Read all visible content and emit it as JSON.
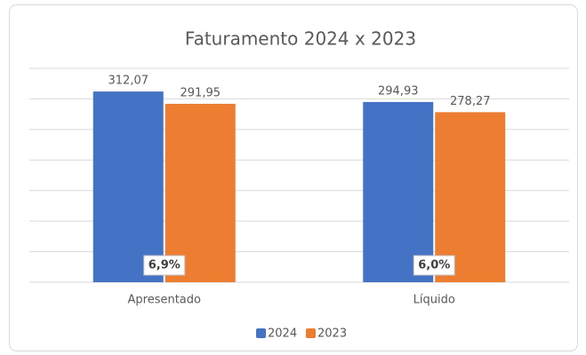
{
  "chart_data": {
    "type": "bar",
    "title": "Faturamento 2024 x 2023",
    "categories": [
      "Apresentado",
      "Líquido"
    ],
    "series": [
      {
        "name": "2024",
        "color": "#4472c4",
        "values": [
          312.07,
          294.93
        ],
        "value_labels": [
          "312,07",
          "294,93"
        ]
      },
      {
        "name": "2023",
        "color": "#ed7d31",
        "values": [
          291.95,
          278.27
        ],
        "value_labels": [
          "291,95",
          "278,27"
        ]
      }
    ],
    "annotations": [
      "6,9%",
      "6,0%"
    ],
    "ylim": [
      0,
      350
    ],
    "yticks": [
      0,
      50,
      100,
      150,
      200,
      250,
      300,
      350
    ],
    "grid": true,
    "legend": "bottom"
  }
}
